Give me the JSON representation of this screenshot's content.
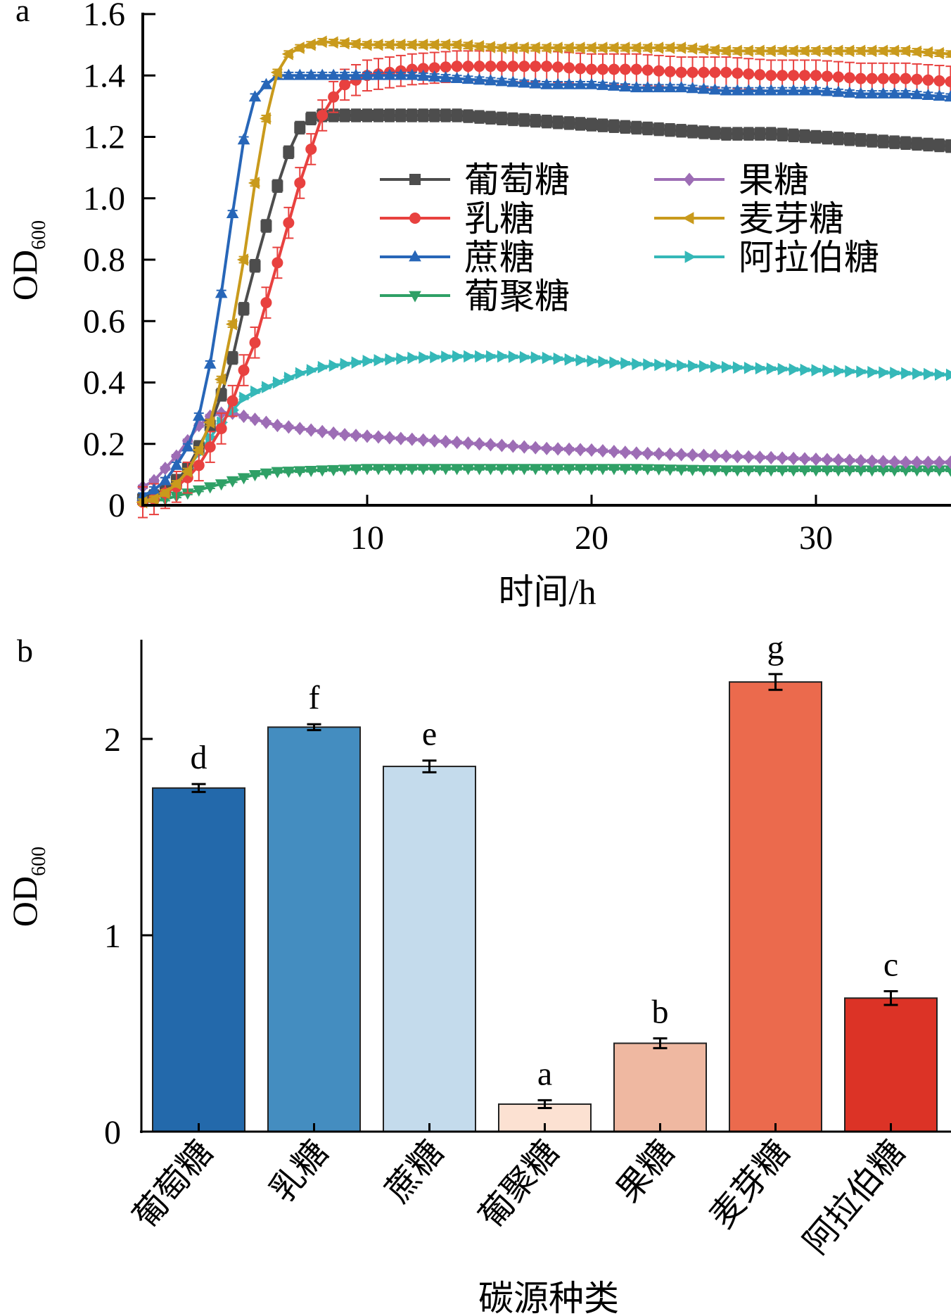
{
  "chart_data": [
    {
      "panel": "a",
      "type": "line",
      "title": "",
      "xlabel": "时间/h",
      "ylabel": "OD",
      "ylabel_sub": "600",
      "xlim": [
        0,
        36.1
      ],
      "ylim": [
        0,
        1.6
      ],
      "xticks": [
        10,
        20,
        30
      ],
      "xtick_labels": [
        "10",
        "20",
        "30"
      ],
      "yticks": [
        0,
        0.2,
        0.4,
        0.6,
        0.8,
        1.0,
        1.2,
        1.4,
        1.6
      ],
      "ytick_labels": [
        "0",
        "0.2",
        "0.4",
        "0.6",
        "0.8",
        "1.0",
        "1.2",
        "1.4",
        "1.6"
      ],
      "grid": false,
      "legend_position": "center-right",
      "series": [
        {
          "name": "葡萄糖",
          "color": "#4d4d4d",
          "marker": "square",
          "err": 0.02,
          "points": [
            [
              0,
              0.02
            ],
            [
              0.5,
              0.03
            ],
            [
              1,
              0.05
            ],
            [
              1.5,
              0.08
            ],
            [
              2,
              0.12
            ],
            [
              2.5,
              0.19
            ],
            [
              3,
              0.26
            ],
            [
              3.5,
              0.36
            ],
            [
              4,
              0.48
            ],
            [
              4.5,
              0.64
            ],
            [
              5,
              0.78
            ],
            [
              5.5,
              0.91
            ],
            [
              6,
              1.04
            ],
            [
              6.5,
              1.15
            ],
            [
              7,
              1.23
            ],
            [
              7.5,
              1.26
            ],
            [
              8,
              1.27
            ],
            [
              10,
              1.27
            ],
            [
              12,
              1.27
            ],
            [
              14,
              1.27
            ],
            [
              16,
              1.26
            ],
            [
              18,
              1.25
            ],
            [
              20,
              1.24
            ],
            [
              22,
              1.23
            ],
            [
              24,
              1.22
            ],
            [
              26,
              1.21
            ],
            [
              28,
              1.21
            ],
            [
              30,
              1.2
            ],
            [
              32,
              1.19
            ],
            [
              34,
              1.18
            ],
            [
              36,
              1.17
            ]
          ]
        },
        {
          "name": "乳糖",
          "color": "#e8413f",
          "marker": "circle",
          "err": 0.05,
          "points": [
            [
              0,
              0.01
            ],
            [
              0.5,
              0.02
            ],
            [
              1,
              0.04
            ],
            [
              1.5,
              0.06
            ],
            [
              2,
              0.09
            ],
            [
              2.5,
              0.13
            ],
            [
              3,
              0.19
            ],
            [
              3.5,
              0.25
            ],
            [
              4,
              0.34
            ],
            [
              4.5,
              0.44
            ],
            [
              5,
              0.53
            ],
            [
              5.5,
              0.66
            ],
            [
              6,
              0.79
            ],
            [
              6.5,
              0.92
            ],
            [
              7,
              1.05
            ],
            [
              7.5,
              1.16
            ],
            [
              8,
              1.27
            ],
            [
              8.5,
              1.33
            ],
            [
              9,
              1.37
            ],
            [
              10,
              1.4
            ],
            [
              12,
              1.42
            ],
            [
              14,
              1.43
            ],
            [
              16,
              1.43
            ],
            [
              18,
              1.43
            ],
            [
              20,
              1.42
            ],
            [
              22,
              1.42
            ],
            [
              24,
              1.41
            ],
            [
              26,
              1.41
            ],
            [
              28,
              1.4
            ],
            [
              30,
              1.4
            ],
            [
              32,
              1.39
            ],
            [
              34,
              1.39
            ],
            [
              36,
              1.38
            ]
          ]
        },
        {
          "name": "蔗糖",
          "color": "#2766b8",
          "marker": "triangle-up",
          "err": 0.01,
          "points": [
            [
              0,
              0.03
            ],
            [
              0.5,
              0.05
            ],
            [
              1,
              0.08
            ],
            [
              1.5,
              0.13
            ],
            [
              2,
              0.19
            ],
            [
              2.5,
              0.29
            ],
            [
              3,
              0.46
            ],
            [
              3.5,
              0.69
            ],
            [
              4,
              0.95
            ],
            [
              4.5,
              1.19
            ],
            [
              5,
              1.33
            ],
            [
              5.5,
              1.37
            ],
            [
              6,
              1.4
            ],
            [
              8,
              1.4
            ],
            [
              10,
              1.4
            ],
            [
              12,
              1.4
            ],
            [
              14,
              1.39
            ],
            [
              16,
              1.38
            ],
            [
              18,
              1.37
            ],
            [
              20,
              1.37
            ],
            [
              22,
              1.36
            ],
            [
              24,
              1.36
            ],
            [
              26,
              1.35
            ],
            [
              28,
              1.35
            ],
            [
              30,
              1.35
            ],
            [
              32,
              1.34
            ],
            [
              34,
              1.34
            ],
            [
              36,
              1.33
            ]
          ]
        },
        {
          "name": "葡聚糖",
          "color": "#2fa066",
          "marker": "triangle-down",
          "err": 0.005,
          "points": [
            [
              0,
              0.01
            ],
            [
              1,
              0.02
            ],
            [
              2,
              0.04
            ],
            [
              3,
              0.06
            ],
            [
              4,
              0.08
            ],
            [
              5,
              0.1
            ],
            [
              6,
              0.11
            ],
            [
              8,
              0.115
            ],
            [
              10,
              0.12
            ],
            [
              14,
              0.12
            ],
            [
              18,
              0.12
            ],
            [
              22,
              0.12
            ],
            [
              26,
              0.115
            ],
            [
              30,
              0.115
            ],
            [
              34,
              0.115
            ],
            [
              36,
              0.115
            ]
          ]
        },
        {
          "name": "果糖",
          "color": "#9d6db5",
          "marker": "diamond",
          "err": 0.005,
          "points": [
            [
              0,
              0.06
            ],
            [
              0.5,
              0.08
            ],
            [
              1,
              0.12
            ],
            [
              1.5,
              0.16
            ],
            [
              2,
              0.21
            ],
            [
              2.5,
              0.26
            ],
            [
              3,
              0.29
            ],
            [
              3.5,
              0.3
            ],
            [
              4,
              0.3
            ],
            [
              4.5,
              0.29
            ],
            [
              5,
              0.28
            ],
            [
              6,
              0.26
            ],
            [
              7,
              0.25
            ],
            [
              8,
              0.24
            ],
            [
              9,
              0.23
            ],
            [
              10,
              0.225
            ],
            [
              12,
              0.215
            ],
            [
              14,
              0.205
            ],
            [
              16,
              0.195
            ],
            [
              18,
              0.185
            ],
            [
              20,
              0.18
            ],
            [
              22,
              0.17
            ],
            [
              24,
              0.165
            ],
            [
              26,
              0.16
            ],
            [
              28,
              0.155
            ],
            [
              30,
              0.15
            ],
            [
              32,
              0.145
            ],
            [
              34,
              0.14
            ],
            [
              36,
              0.14
            ]
          ]
        },
        {
          "name": "麦芽糖",
          "color": "#c99a1c",
          "marker": "triangle-left",
          "err": 0.01,
          "points": [
            [
              0,
              0.01
            ],
            [
              0.5,
              0.02
            ],
            [
              1,
              0.04
            ],
            [
              1.5,
              0.07
            ],
            [
              2,
              0.11
            ],
            [
              2.5,
              0.18
            ],
            [
              3,
              0.27
            ],
            [
              3.5,
              0.41
            ],
            [
              4,
              0.59
            ],
            [
              4.5,
              0.8
            ],
            [
              5,
              1.05
            ],
            [
              5.5,
              1.26
            ],
            [
              6,
              1.41
            ],
            [
              6.5,
              1.47
            ],
            [
              7,
              1.49
            ],
            [
              7.5,
              1.5
            ],
            [
              8,
              1.51
            ],
            [
              10,
              1.5
            ],
            [
              12,
              1.5
            ],
            [
              14,
              1.5
            ],
            [
              16,
              1.49
            ],
            [
              18,
              1.49
            ],
            [
              20,
              1.49
            ],
            [
              22,
              1.49
            ],
            [
              24,
              1.49
            ],
            [
              26,
              1.48
            ],
            [
              28,
              1.48
            ],
            [
              30,
              1.48
            ],
            [
              32,
              1.48
            ],
            [
              34,
              1.48
            ],
            [
              36,
              1.47
            ]
          ]
        },
        {
          "name": "阿拉伯糖",
          "color": "#35b8b8",
          "marker": "triangle-right",
          "err": 0.005,
          "points": [
            [
              0,
              0.02
            ],
            [
              0.5,
              0.03
            ],
            [
              1,
              0.05
            ],
            [
              1.5,
              0.08
            ],
            [
              2,
              0.12
            ],
            [
              2.5,
              0.17
            ],
            [
              3,
              0.22
            ],
            [
              3.5,
              0.27
            ],
            [
              4,
              0.31
            ],
            [
              4.5,
              0.35
            ],
            [
              5,
              0.37
            ],
            [
              6,
              0.4
            ],
            [
              7,
              0.43
            ],
            [
              8,
              0.45
            ],
            [
              9,
              0.46
            ],
            [
              10,
              0.47
            ],
            [
              12,
              0.48
            ],
            [
              14,
              0.485
            ],
            [
              16,
              0.485
            ],
            [
              18,
              0.48
            ],
            [
              20,
              0.47
            ],
            [
              22,
              0.46
            ],
            [
              24,
              0.455
            ],
            [
              26,
              0.45
            ],
            [
              28,
              0.445
            ],
            [
              30,
              0.44
            ],
            [
              32,
              0.435
            ],
            [
              34,
              0.43
            ],
            [
              36,
              0.425
            ]
          ]
        }
      ]
    },
    {
      "panel": "b",
      "type": "bar",
      "title": "",
      "xlabel": "碳源种类",
      "ylabel": "OD",
      "ylabel_sub": "600",
      "ylim": [
        0,
        2.5
      ],
      "yticks": [
        0,
        1,
        2
      ],
      "ytick_labels": [
        "0",
        "1",
        "2"
      ],
      "grid": false,
      "categories": [
        "葡萄糖",
        "乳糖",
        "蔗糖",
        "葡聚糖",
        "果糖",
        "麦芽糖",
        "阿拉伯糖"
      ],
      "values": [
        1.75,
        2.06,
        1.86,
        0.14,
        0.45,
        2.29,
        0.68
      ],
      "errors": [
        0.02,
        0.015,
        0.03,
        0.02,
        0.025,
        0.04,
        0.035
      ],
      "significance_letters": [
        "d",
        "f",
        "e",
        "a",
        "b",
        "g",
        "c"
      ],
      "colors": [
        "#2369ab",
        "#448dc0",
        "#c4dbec",
        "#fce1d2",
        "#efb8a1",
        "#eb6a4d",
        "#dc3326"
      ]
    }
  ],
  "panel_labels": {
    "a": "a",
    "b": "b"
  }
}
